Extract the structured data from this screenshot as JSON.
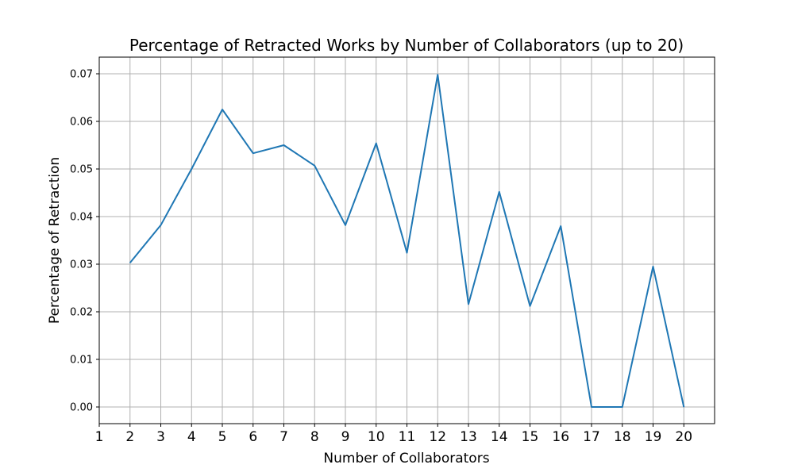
{
  "chart_data": {
    "type": "line",
    "title": "Percentage of Retracted Works by Number of Collaborators (up to 20)",
    "xlabel": "Number of Collaborators",
    "ylabel": "Percentage of Retraction",
    "xlim": [
      1,
      21
    ],
    "ylim": [
      -0.0035,
      0.0735
    ],
    "xticks": [
      1,
      2,
      3,
      4,
      5,
      6,
      7,
      8,
      9,
      10,
      11,
      12,
      13,
      14,
      15,
      16,
      17,
      18,
      19,
      20
    ],
    "yticks": [
      "0.00",
      "0.01",
      "0.02",
      "0.03",
      "0.04",
      "0.05",
      "0.06",
      "0.07"
    ],
    "grid": true,
    "line_color": "#1f77b4",
    "series": [
      {
        "x": [
          2,
          3,
          4,
          5,
          6,
          7,
          8,
          9,
          10,
          11,
          12,
          13,
          14,
          15,
          16,
          17,
          18,
          19,
          20
        ],
        "values": [
          0.0303,
          0.0382,
          0.05,
          0.0625,
          0.0533,
          0.055,
          0.0507,
          0.0382,
          0.0554,
          0.0324,
          0.0698,
          0.0216,
          0.0452,
          0.0212,
          0.038,
          0.0,
          0.0,
          0.0295,
          0.0
        ]
      }
    ]
  }
}
